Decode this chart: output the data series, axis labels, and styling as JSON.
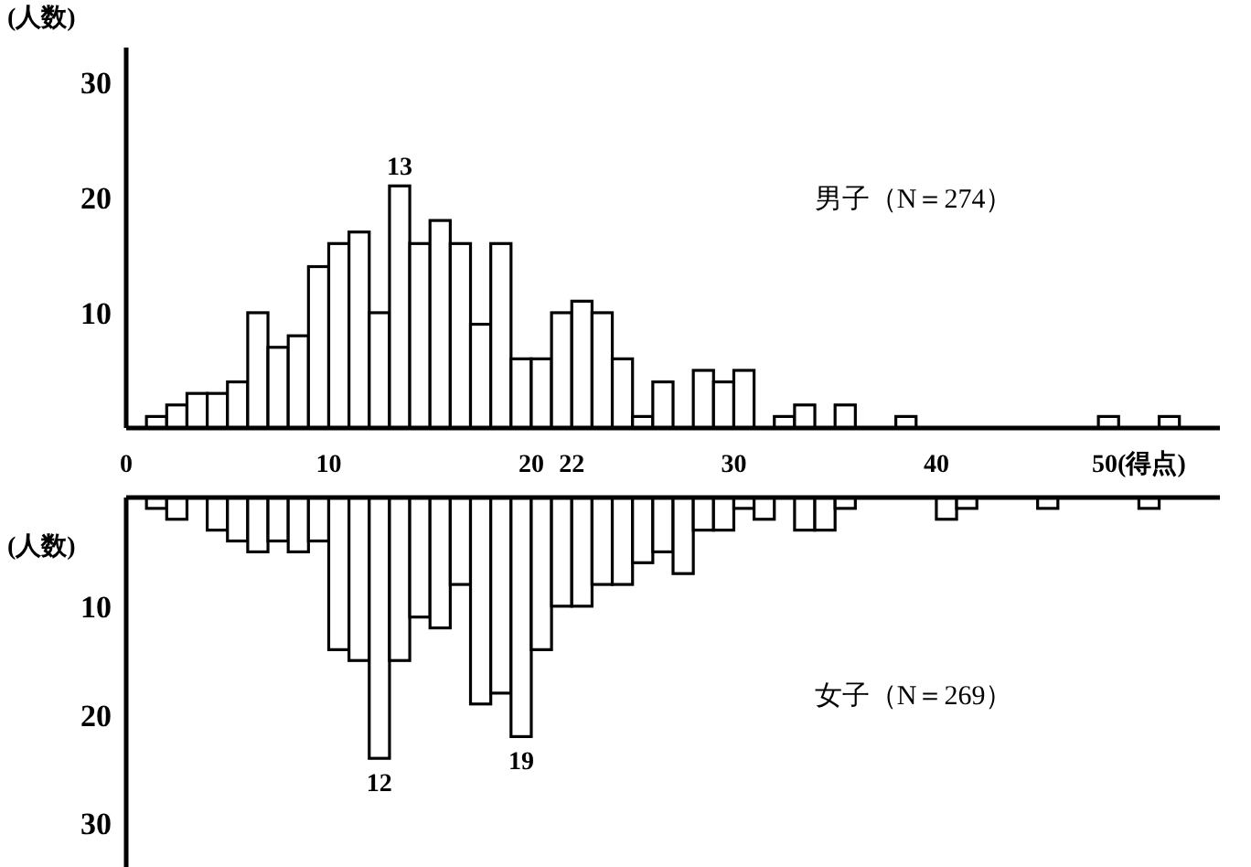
{
  "chart_data": [
    {
      "type": "histogram",
      "ylabel": "(人数)",
      "color": "#ffffff",
      "bins": [
        0,
        1,
        2,
        3,
        4,
        5,
        6,
        7,
        8,
        9,
        10,
        11,
        12,
        13,
        14,
        15,
        16,
        17,
        18,
        19,
        20,
        21,
        22,
        23,
        24,
        25,
        26,
        27,
        28,
        29,
        30,
        31,
        32,
        33,
        34,
        35,
        36,
        37,
        38,
        39,
        40,
        41,
        42,
        43,
        44,
        45,
        46,
        47,
        48,
        49,
        50,
        51,
        52
      ],
      "values": [
        0,
        1,
        2,
        3,
        3,
        4,
        10,
        7,
        8,
        14,
        16,
        17,
        10,
        21,
        16,
        18,
        16,
        9,
        16,
        6,
        6,
        10,
        11,
        10,
        6,
        1,
        4,
        0,
        5,
        4,
        5,
        0,
        1,
        2,
        0,
        2,
        0,
        0,
        1,
        0,
        0,
        0,
        0,
        0,
        0,
        0,
        0,
        0,
        1,
        0,
        0,
        1
      ],
      "xlim": [
        0,
        54
      ],
      "ylim": [
        0,
        33
      ],
      "xticks": [
        0,
        10,
        20,
        22,
        30,
        40,
        {
          "value": 50,
          "label": "50(得点)"
        }
      ],
      "yticks": [
        10,
        20,
        30
      ],
      "annotations": [
        {
          "text": "13",
          "x": 13.5,
          "y": 21
        },
        "男子（N＝274）"
      ]
    },
    {
      "type": "histogram",
      "ylabel": "(人数)",
      "color": "#ffffff",
      "bins": [
        0,
        1,
        2,
        3,
        4,
        5,
        6,
        7,
        8,
        9,
        10,
        11,
        12,
        13,
        14,
        15,
        16,
        17,
        18,
        19,
        20,
        21,
        22,
        23,
        24,
        25,
        26,
        27,
        28,
        29,
        30,
        31,
        32,
        33,
        34,
        35,
        36,
        37,
        38,
        39,
        40,
        41,
        42,
        43,
        44,
        45,
        46,
        47,
        48,
        49,
        50,
        51,
        52
      ],
      "values": [
        0,
        1,
        2,
        0,
        3,
        4,
        5,
        4,
        5,
        4,
        14,
        15,
        24,
        15,
        11,
        12,
        8,
        19,
        18,
        22,
        14,
        10,
        10,
        8,
        8,
        6,
        5,
        7,
        3,
        3,
        1,
        2,
        0,
        3,
        3,
        1,
        0,
        0,
        0,
        0,
        2,
        1,
        0,
        0,
        0,
        1,
        0,
        0,
        0,
        0,
        1,
        0
      ],
      "xlim": [
        0,
        54
      ],
      "ylim": [
        34,
        0
      ],
      "yticks": [
        10,
        20,
        30
      ],
      "tick_labels": "y",
      "annotations": [
        {
          "text": "12",
          "x": 12.5,
          "y": 24
        },
        {
          "text": "19",
          "x": 19.5,
          "y": 22
        },
        "女子（N＝269）"
      ]
    }
  ]
}
